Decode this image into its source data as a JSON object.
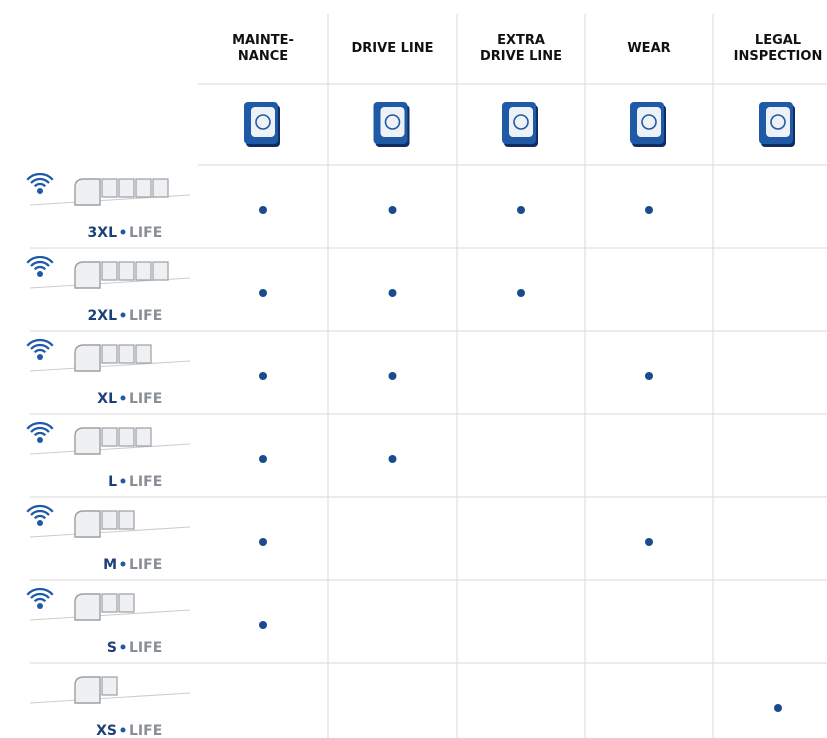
{
  "header": {
    "columns": [
      {
        "label": [
          "MAINTE-",
          "NANCE"
        ]
      },
      {
        "label": [
          "DRIVE LINE"
        ]
      },
      {
        "label": [
          "EXTRA",
          "DRIVE LINE"
        ]
      },
      {
        "label": [
          "WEAR"
        ]
      },
      {
        "label": [
          "LEGAL",
          "INSPECTION"
        ]
      }
    ]
  },
  "rows": [
    {
      "size": "3XL",
      "suffix": "LIFE",
      "wireless": true,
      "cells": [
        true,
        true,
        true,
        true,
        false
      ]
    },
    {
      "size": "2XL",
      "suffix": "LIFE",
      "wireless": true,
      "cells": [
        true,
        true,
        true,
        false,
        false
      ]
    },
    {
      "size": "XL",
      "suffix": "LIFE",
      "wireless": true,
      "cells": [
        true,
        true,
        false,
        true,
        false
      ]
    },
    {
      "size": "L",
      "suffix": "LIFE",
      "wireless": true,
      "cells": [
        true,
        true,
        false,
        false,
        false
      ]
    },
    {
      "size": "M",
      "suffix": "LIFE",
      "wireless": true,
      "cells": [
        true,
        false,
        false,
        true,
        false
      ]
    },
    {
      "size": "S",
      "suffix": "LIFE",
      "wireless": true,
      "cells": [
        true,
        false,
        false,
        false,
        false
      ]
    },
    {
      "size": "XS",
      "suffix": "LIFE",
      "wireless": false,
      "cells": [
        false,
        false,
        false,
        false,
        true
      ]
    }
  ]
}
